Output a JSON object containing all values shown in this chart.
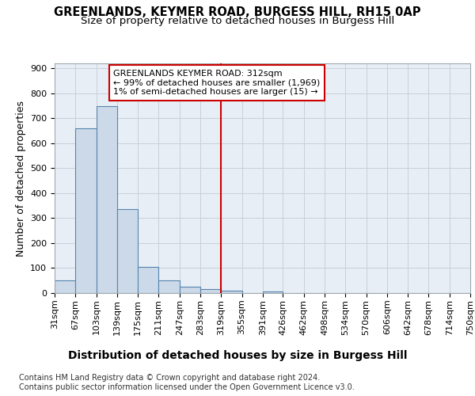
{
  "title": "GREENLANDS, KEYMER ROAD, BURGESS HILL, RH15 0AP",
  "subtitle": "Size of property relative to detached houses in Burgess Hill",
  "xlabel": "Distribution of detached houses by size in Burgess Hill",
  "ylabel": "Number of detached properties",
  "bin_edges": [
    31,
    67,
    103,
    139,
    175,
    211,
    247,
    283,
    319,
    355,
    391,
    426,
    462,
    498,
    534,
    570,
    606,
    642,
    678,
    714,
    750
  ],
  "bar_heights": [
    50,
    660,
    750,
    335,
    105,
    50,
    25,
    15,
    10,
    0,
    7,
    0,
    0,
    0,
    0,
    0,
    0,
    0,
    0,
    0
  ],
  "bar_color": "#ccd9e8",
  "bar_edge_color": "#5585b0",
  "vline_x": 319,
  "vline_color": "#cc0000",
  "annotation_line1": "GREENLANDS KEYMER ROAD: 312sqm",
  "annotation_line2": "← 99% of detached houses are smaller (1,969)",
  "annotation_line3": "1% of semi-detached houses are larger (15) →",
  "annotation_box_color": "#ffffff",
  "annotation_box_edgecolor": "#cc0000",
  "ylim": [
    0,
    920
  ],
  "yticks": [
    0,
    100,
    200,
    300,
    400,
    500,
    600,
    700,
    800,
    900
  ],
  "footer_text": "Contains HM Land Registry data © Crown copyright and database right 2024.\nContains public sector information licensed under the Open Government Licence v3.0.",
  "bg_color": "#e8eef5",
  "grid_color": "#c8d0dc",
  "title_fontsize": 10.5,
  "subtitle_fontsize": 9.5,
  "xlabel_fontsize": 10,
  "ylabel_fontsize": 9,
  "tick_fontsize": 8,
  "annotation_fontsize": 8,
  "footer_fontsize": 7
}
